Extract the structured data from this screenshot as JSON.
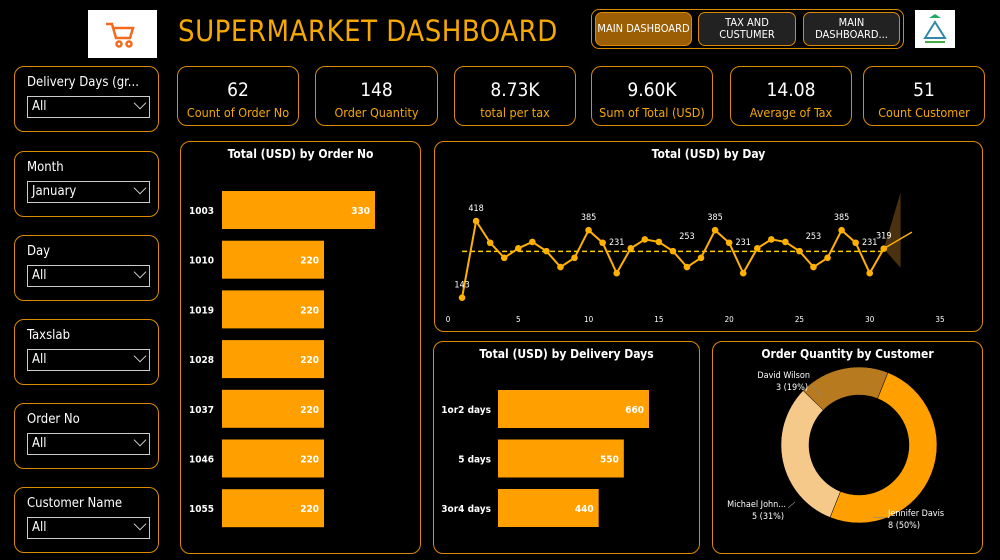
{
  "header": {
    "title": "SUPERMARKET DASHBOARD",
    "nav": [
      {
        "label": "MAIN DASHBOARD",
        "active": true
      },
      {
        "label": "TAX AND CUSTUMER",
        "active": false
      },
      {
        "label": "MAIN DASHBOARD...",
        "active": false
      }
    ]
  },
  "slicers": [
    {
      "label": "Delivery Days (gr...",
      "value": "All"
    },
    {
      "label": "Month",
      "value": "January"
    },
    {
      "label": "Day",
      "value": "All"
    },
    {
      "label": "Taxslab",
      "value": "All"
    },
    {
      "label": "Order No",
      "value": "All"
    },
    {
      "label": "Customer Name",
      "value": "All"
    }
  ],
  "kpis": [
    {
      "value": "62",
      "caption": "Count of Order No"
    },
    {
      "value": "148",
      "caption": "Order Quantity"
    },
    {
      "value": "8.73K",
      "caption": "total per tax"
    },
    {
      "value": "9.60K",
      "caption": "Sum of Total (USD)"
    },
    {
      "value": "14.08",
      "caption": "Average of Tax"
    },
    {
      "value": "51",
      "caption": "Count Customer"
    }
  ],
  "colors": {
    "accent": "#F5A800",
    "bar": "#FFA000",
    "border": "#D98A00",
    "active_nav": "#9C5E05"
  },
  "chart_data": [
    {
      "type": "bar",
      "title": "Total (USD) by Order No",
      "orientation": "horizontal",
      "categories": [
        "1003",
        "1010",
        "1019",
        "1028",
        "1037",
        "1046",
        "1055"
      ],
      "values": [
        330,
        220,
        220,
        220,
        220,
        220,
        220
      ]
    },
    {
      "type": "line",
      "title": "Total (USD) by Day",
      "x": [
        1,
        2,
        3,
        4,
        5,
        6,
        7,
        8,
        9,
        10,
        11,
        12,
        13,
        14,
        15,
        16,
        17,
        18,
        19,
        20,
        21,
        22,
        23,
        24,
        25,
        26,
        27,
        28,
        29,
        30,
        31
      ],
      "y": [
        143,
        418,
        340,
        286,
        320,
        343,
        310,
        253,
        286,
        385,
        340,
        231,
        320,
        352,
        343,
        310,
        253,
        286,
        385,
        340,
        231,
        320,
        352,
        343,
        310,
        253,
        286,
        385,
        340,
        231,
        319
      ],
      "labels": {
        "1": "143",
        "2": "418",
        "10": "385",
        "12": "231",
        "17": "253",
        "19": "385",
        "21": "231",
        "26": "253",
        "28": "385",
        "30": "231",
        "31": "319"
      },
      "average": 309,
      "xlim": [
        0,
        35
      ],
      "xticks": [
        0,
        5,
        10,
        15,
        20,
        25,
        30,
        35
      ],
      "forecast": true
    },
    {
      "type": "bar",
      "title": "Total (USD) by Delivery Days",
      "orientation": "horizontal",
      "categories": [
        "1or2 days",
        "5 days",
        "3or4 days"
      ],
      "values": [
        660,
        550,
        440
      ]
    },
    {
      "type": "pie",
      "donut": true,
      "title": "Order Quantity by Customer",
      "slices": [
        {
          "name": "Jennifer Davis",
          "value": 8,
          "label": "8 (50%)",
          "color": "#FFA000"
        },
        {
          "name": "Michael John...",
          "value": 5,
          "label": "5 (31%)",
          "color": "#F5C98A"
        },
        {
          "name": "David Wilson",
          "value": 3,
          "label": "3 (19%)",
          "color": "#B87A1E"
        }
      ]
    }
  ]
}
